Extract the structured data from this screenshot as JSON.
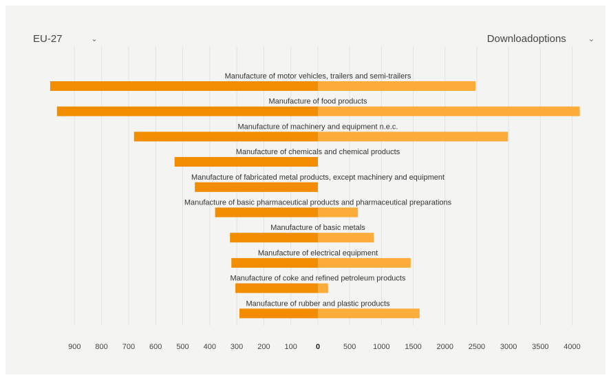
{
  "controls": {
    "region": "EU-27",
    "download": "Downloadoptions"
  },
  "chart_data": {
    "type": "bar",
    "layout": "diverging-horizontal",
    "categories": [
      "Manufacture of motor vehicles, trailers and semi-trailers",
      "Manufacture of food products",
      "Manufacture of machinery and equipment n.e.c.",
      "Manufacture of chemicals and chemical products",
      "Manufacture of fabricated metal products, except machinery and equipment",
      "Manufacture of basic pharmaceutical products and pharmaceutical preparations",
      "Manufacture of basic metals",
      "Manufacture of electrical equipment",
      "Manufacture of coke and refined petroleum products",
      "Manufacture of rubber and plastic products"
    ],
    "series": [
      {
        "side": "left",
        "color": "#f28c00",
        "values": [
          990,
          965,
          680,
          530,
          455,
          380,
          325,
          320,
          305,
          290
        ]
      },
      {
        "side": "right",
        "color": "#fcac3a",
        "values": [
          2480,
          4120,
          2990,
          0,
          0,
          630,
          880,
          1460,
          160,
          1600
        ]
      }
    ],
    "left_axis": {
      "ticks": [
        900,
        800,
        700,
        600,
        500,
        400,
        300,
        200,
        100,
        0
      ],
      "xlim": [
        0,
        1000
      ]
    },
    "right_axis": {
      "ticks": [
        0,
        500,
        1000,
        1500,
        2000,
        2500,
        3000,
        3500,
        4000
      ],
      "xlim": [
        0,
        4200
      ]
    },
    "grid": true,
    "colors": {
      "grid": "#e2e2e0",
      "label": "#333333",
      "tick": "#444444",
      "zero_tick": "#222222"
    }
  }
}
